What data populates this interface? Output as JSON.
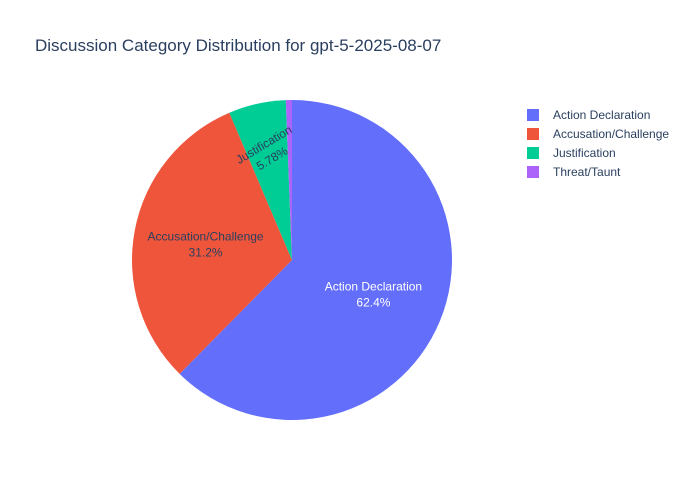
{
  "chart_data": {
    "type": "pie",
    "title": "Discussion Category Distribution for gpt-5-2025-08-07",
    "categories": [
      "Action Declaration",
      "Accusation/Challenge",
      "Justification",
      "Threat/Taunt"
    ],
    "values": [
      62.4,
      31.2,
      5.78,
      0.62
    ],
    "slice_labels": [
      {
        "name": "Action Declaration",
        "percent": "62.4%"
      },
      {
        "name": "Accusation/Challenge",
        "percent": "31.2%"
      },
      {
        "name": "Justification",
        "percent": "5.78%"
      },
      {
        "name": "Threat/Taunt",
        "percent": ""
      }
    ],
    "colors": [
      "#636efa",
      "#EF553B",
      "#00cc96",
      "#ab63fa"
    ],
    "label_colors": [
      "#ffffff",
      "#2a3f5f",
      "#2a3f5f",
      "#2a3f5f"
    ],
    "direction": "clockwise",
    "start_angle": "12 o'clock",
    "legend": {
      "placement": "top-right",
      "entries": [
        "Action Declaration",
        "Accusation/Challenge",
        "Justification",
        "Threat/Taunt"
      ]
    }
  }
}
